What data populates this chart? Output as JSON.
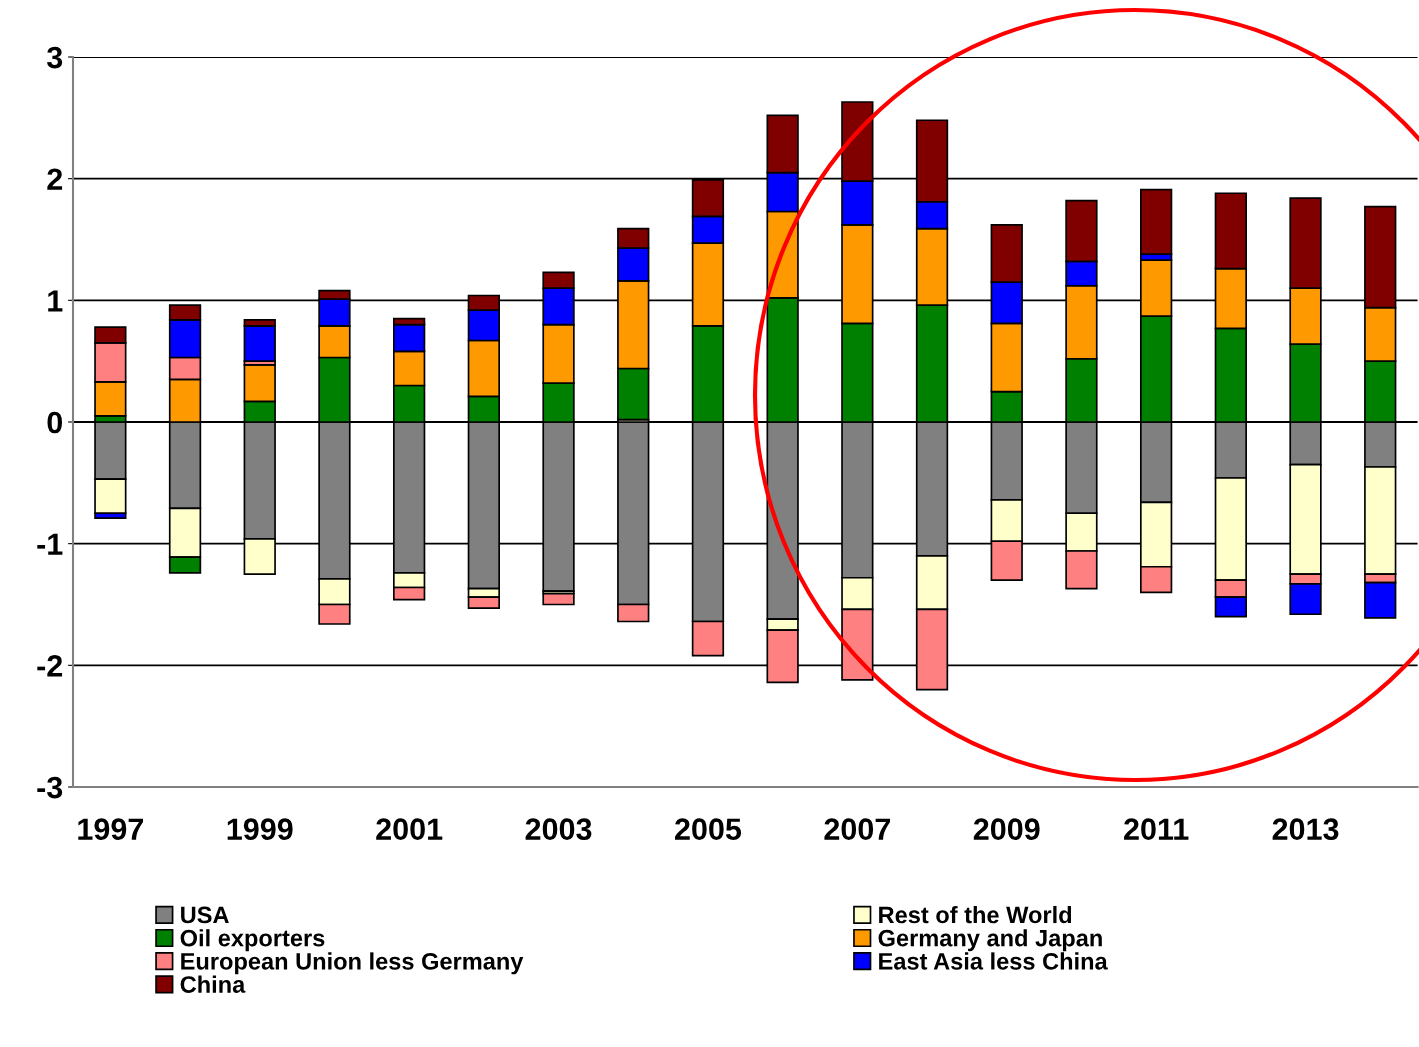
{
  "chart_data": {
    "type": "bar",
    "stacked": true,
    "categories": [
      "1997",
      null,
      "1999",
      null,
      "2001",
      null,
      "2003",
      null,
      "2005",
      null,
      "2007",
      null,
      "2009",
      null,
      "2011",
      null,
      "2013",
      null
    ],
    "ylim": [
      -3,
      3
    ],
    "yticks": [
      -3,
      -2,
      -1,
      0,
      1,
      2,
      3
    ],
    "grid": "y",
    "legend": "bottom",
    "series": [
      {
        "name": "USA",
        "color": "#808080",
        "values": [
          -0.47,
          -0.71,
          -0.96,
          -1.29,
          -1.24,
          -1.37,
          -1.39,
          -1.5,
          -1.64,
          -1.62,
          -1.28,
          -1.1,
          -0.64,
          -0.75,
          -0.66,
          -0.46,
          -0.35,
          -0.37
        ]
      },
      {
        "name": "Rest of the World",
        "color": "#ffffcc",
        "values": [
          -0.28,
          -0.4,
          -0.29,
          -0.21,
          -0.12,
          -0.07,
          -0.02,
          0.02,
          null,
          -0.09,
          -0.26,
          -0.44,
          -0.34,
          -0.31,
          -0.53,
          -0.84,
          -0.9,
          -0.88
        ]
      },
      {
        "name": "Oil exporters",
        "color": "#008000",
        "values": [
          0.05,
          -0.13,
          0.17,
          0.53,
          0.3,
          0.21,
          0.32,
          0.42,
          0.79,
          1.02,
          0.81,
          0.96,
          0.25,
          0.52,
          0.87,
          0.77,
          0.64,
          0.5
        ]
      },
      {
        "name": "Germany and Japan",
        "color": "#ff9900",
        "values": [
          0.28,
          0.35,
          0.3,
          0.26,
          0.28,
          0.46,
          0.48,
          0.72,
          0.68,
          0.71,
          0.81,
          0.63,
          0.56,
          0.6,
          0.46,
          0.49,
          0.46,
          0.44
        ]
      },
      {
        "name": "European Union less Germany",
        "color": "#ff8080",
        "values": [
          0.32,
          0.18,
          0.03,
          -0.16,
          -0.1,
          -0.09,
          -0.09,
          -0.14,
          -0.28,
          -0.43,
          -0.58,
          -0.66,
          -0.32,
          -0.31,
          -0.21,
          -0.14,
          -0.08,
          -0.07
        ]
      },
      {
        "name": "East Asia less China",
        "color": "#0000ff",
        "values": [
          -0.04,
          0.31,
          0.29,
          0.22,
          0.22,
          0.25,
          0.3,
          0.27,
          0.22,
          0.32,
          0.36,
          0.22,
          0.34,
          0.2,
          0.05,
          -0.16,
          -0.25,
          -0.29
        ]
      },
      {
        "name": "China",
        "color": "#800000",
        "values": [
          0.13,
          0.12,
          0.05,
          0.07,
          0.05,
          0.12,
          0.13,
          0.16,
          0.3,
          0.47,
          0.65,
          0.67,
          0.47,
          0.5,
          0.53,
          0.62,
          0.74,
          0.83
        ]
      }
    ]
  }
}
